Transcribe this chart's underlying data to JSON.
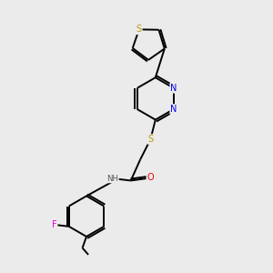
{
  "bg_color": "#ebebeb",
  "bond_color": "#000000",
  "atom_colors": {
    "S": "#b8960c",
    "N": "#0000ee",
    "O": "#ee0000",
    "F": "#dd00dd",
    "H": "#555555",
    "C": "#000000"
  },
  "lw": 1.4,
  "off": 0.07
}
